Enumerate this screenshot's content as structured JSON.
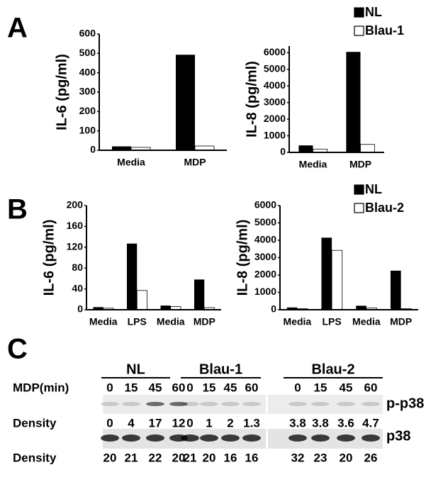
{
  "panels": [
    "A",
    "B",
    "C"
  ],
  "chart_data": [
    {
      "type": "bar",
      "ylabel": "IL-6 (pg/ml)",
      "categories": [
        "Media",
        "MDP"
      ],
      "series": [
        {
          "color": "#000000",
          "values": [
            20,
            493
          ]
        },
        {
          "color": "#ffffff",
          "values": [
            15,
            22
          ]
        }
      ],
      "ylim": [
        0,
        600
      ],
      "yticks": [
        0,
        100,
        200,
        300,
        400,
        500,
        600
      ]
    },
    {
      "type": "bar",
      "ylabel": "IL-8 (pg/ml)",
      "categories": [
        "Media",
        "MDP"
      ],
      "series": [
        {
          "name": "NL",
          "color": "#000000",
          "values": [
            420,
            6050
          ]
        },
        {
          "name": "Blau-1",
          "color": "#ffffff",
          "values": [
            200,
            480
          ]
        }
      ],
      "ylim": [
        0,
        6400
      ],
      "yticks": [
        0,
        1000,
        2000,
        3000,
        4000,
        5000,
        6000
      ]
    },
    {
      "type": "bar",
      "ylabel": "IL-6 (pg/ml)",
      "categories": [
        "Media",
        "LPS",
        "Media",
        "MDP"
      ],
      "series": [
        {
          "color": "#000000",
          "values": [
            5,
            127,
            8,
            58
          ]
        },
        {
          "color": "#ffffff",
          "values": [
            3,
            37,
            6,
            4
          ]
        }
      ],
      "ylim": [
        0,
        200
      ],
      "yticks": [
        0,
        40,
        80,
        120,
        160,
        200
      ]
    },
    {
      "type": "bar",
      "ylabel": "IL-8 (pg/ml)",
      "categories": [
        "Media",
        "LPS",
        "Media",
        "MDP"
      ],
      "series": [
        {
          "name": "NL",
          "color": "#000000",
          "values": [
            130,
            4150,
            230,
            2250
          ]
        },
        {
          "name": "Blau-2",
          "color": "#ffffff",
          "values": [
            60,
            3420,
            100,
            60
          ]
        }
      ],
      "ylim": [
        0,
        6000
      ],
      "yticks": [
        0,
        1000,
        2000,
        3000,
        4000,
        5000,
        6000
      ]
    }
  ],
  "blot": {
    "time_label": "MDP(min)",
    "groups": [
      "NL",
      "Blau-1",
      "Blau-2"
    ],
    "times": [
      "0",
      "15",
      "45",
      "60",
      "0",
      "15",
      "45",
      "60",
      "0",
      "15",
      "45",
      "60"
    ],
    "rows": [
      {
        "name": "p-p38",
        "density_label": "Density",
        "density": [
          "0",
          "4",
          "17",
          "12",
          "0",
          "1",
          "2",
          "1.3",
          "3.8",
          "3.8",
          "3.6",
          "4.7"
        ]
      },
      {
        "name": "p38",
        "density_label": "Density",
        "density": [
          "20",
          "21",
          "22",
          "20",
          "21",
          "20",
          "16",
          "16",
          "32",
          "23",
          "20",
          "26"
        ]
      }
    ]
  }
}
